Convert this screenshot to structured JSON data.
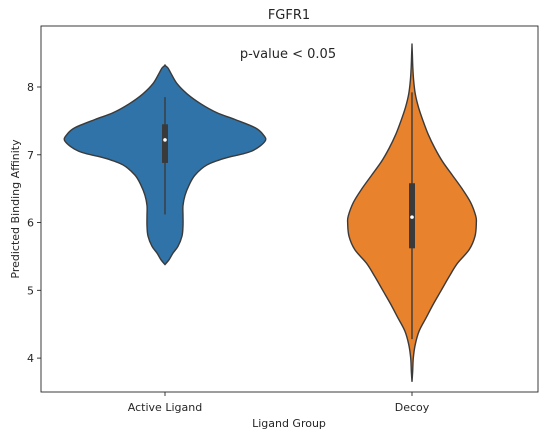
{
  "chart_data": {
    "type": "violin",
    "title": "FGFR1",
    "xlabel": "Ligand Group",
    "ylabel": "Predicted Binding Affinity",
    "annotation": "p-value < 0.05",
    "ylim": [
      3.5,
      8.9
    ],
    "yticks": [
      4,
      5,
      6,
      7,
      8
    ],
    "categories": [
      "Active Ligand",
      "Decoy"
    ],
    "grid": false,
    "series": [
      {
        "category": "Active Ligand",
        "color": "#2f73a8",
        "range": [
          5.38,
          8.32
        ],
        "box": {
          "whisker_low": 6.12,
          "q1": 6.88,
          "median": 7.22,
          "q3": 7.45,
          "whisker_high": 7.85
        },
        "density_profile": [
          [
            5.38,
            0.0
          ],
          [
            5.45,
            0.04
          ],
          [
            5.55,
            0.08
          ],
          [
            5.65,
            0.13
          ],
          [
            5.8,
            0.17
          ],
          [
            5.95,
            0.18
          ],
          [
            6.1,
            0.18
          ],
          [
            6.25,
            0.18
          ],
          [
            6.4,
            0.2
          ],
          [
            6.55,
            0.24
          ],
          [
            6.7,
            0.3
          ],
          [
            6.85,
            0.42
          ],
          [
            6.95,
            0.6
          ],
          [
            7.05,
            0.86
          ],
          [
            7.2,
            1.0
          ],
          [
            7.3,
            0.98
          ],
          [
            7.4,
            0.9
          ],
          [
            7.52,
            0.7
          ],
          [
            7.62,
            0.52
          ],
          [
            7.75,
            0.36
          ],
          [
            7.9,
            0.22
          ],
          [
            8.05,
            0.12
          ],
          [
            8.2,
            0.06
          ],
          [
            8.28,
            0.03
          ],
          [
            8.32,
            0.0
          ]
        ]
      },
      {
        "category": "Decoy",
        "color": "#e8822c",
        "range": [
          3.65,
          8.62
        ],
        "box": {
          "whisker_low": 4.28,
          "q1": 5.62,
          "median": 6.08,
          "q3": 6.58,
          "whisker_high": 7.92
        },
        "density_profile": [
          [
            3.65,
            0.0
          ],
          [
            3.8,
            0.01
          ],
          [
            4.0,
            0.02
          ],
          [
            4.2,
            0.05
          ],
          [
            4.4,
            0.11
          ],
          [
            4.6,
            0.22
          ],
          [
            4.8,
            0.33
          ],
          [
            5.0,
            0.45
          ],
          [
            5.2,
            0.57
          ],
          [
            5.4,
            0.7
          ],
          [
            5.6,
            0.88
          ],
          [
            5.8,
            0.97
          ],
          [
            6.0,
            0.99
          ],
          [
            6.1,
            0.98
          ],
          [
            6.3,
            0.9
          ],
          [
            6.5,
            0.77
          ],
          [
            6.7,
            0.62
          ],
          [
            6.9,
            0.47
          ],
          [
            7.1,
            0.35
          ],
          [
            7.3,
            0.25
          ],
          [
            7.5,
            0.17
          ],
          [
            7.7,
            0.1
          ],
          [
            7.9,
            0.05
          ],
          [
            8.1,
            0.025
          ],
          [
            8.3,
            0.012
          ],
          [
            8.5,
            0.005
          ],
          [
            8.62,
            0.0
          ]
        ]
      }
    ]
  }
}
